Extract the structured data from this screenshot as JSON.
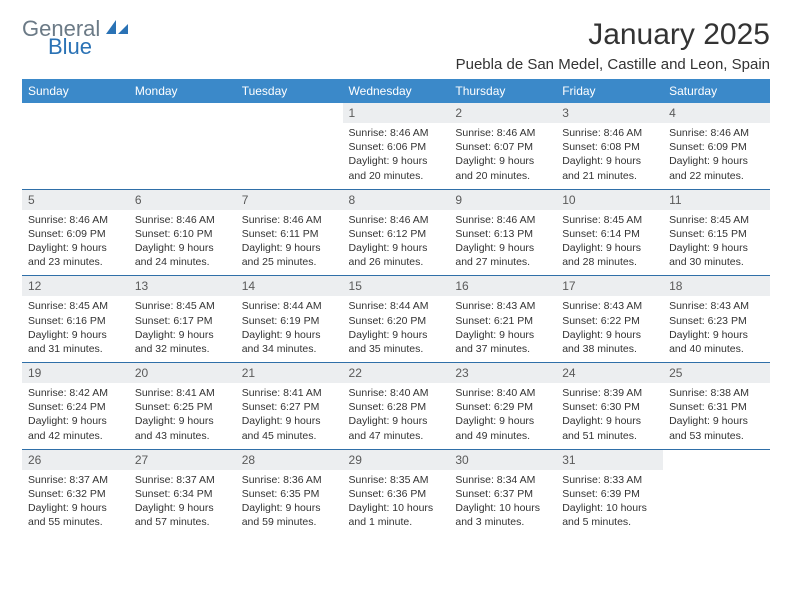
{
  "logo": {
    "word1": "General",
    "word2": "Blue",
    "color1": "#6b7a86",
    "color2": "#2a72b5"
  },
  "header": {
    "title": "January 2025",
    "location": "Puebla de San Medel, Castille and Leon, Spain"
  },
  "colors": {
    "header_bg": "#3b89c9",
    "header_text": "#ffffff",
    "daynum_bg": "#eceef0",
    "rule": "#2f6fa8",
    "body_text": "#333333"
  },
  "dayNames": [
    "Sunday",
    "Monday",
    "Tuesday",
    "Wednesday",
    "Thursday",
    "Friday",
    "Saturday"
  ],
  "weeks": [
    [
      null,
      null,
      null,
      {
        "n": "1",
        "sr": "8:46 AM",
        "ss": "6:06 PM",
        "dl": "9 hours and 20 minutes."
      },
      {
        "n": "2",
        "sr": "8:46 AM",
        "ss": "6:07 PM",
        "dl": "9 hours and 20 minutes."
      },
      {
        "n": "3",
        "sr": "8:46 AM",
        "ss": "6:08 PM",
        "dl": "9 hours and 21 minutes."
      },
      {
        "n": "4",
        "sr": "8:46 AM",
        "ss": "6:09 PM",
        "dl": "9 hours and 22 minutes."
      }
    ],
    [
      {
        "n": "5",
        "sr": "8:46 AM",
        "ss": "6:09 PM",
        "dl": "9 hours and 23 minutes."
      },
      {
        "n": "6",
        "sr": "8:46 AM",
        "ss": "6:10 PM",
        "dl": "9 hours and 24 minutes."
      },
      {
        "n": "7",
        "sr": "8:46 AM",
        "ss": "6:11 PM",
        "dl": "9 hours and 25 minutes."
      },
      {
        "n": "8",
        "sr": "8:46 AM",
        "ss": "6:12 PM",
        "dl": "9 hours and 26 minutes."
      },
      {
        "n": "9",
        "sr": "8:46 AM",
        "ss": "6:13 PM",
        "dl": "9 hours and 27 minutes."
      },
      {
        "n": "10",
        "sr": "8:45 AM",
        "ss": "6:14 PM",
        "dl": "9 hours and 28 minutes."
      },
      {
        "n": "11",
        "sr": "8:45 AM",
        "ss": "6:15 PM",
        "dl": "9 hours and 30 minutes."
      }
    ],
    [
      {
        "n": "12",
        "sr": "8:45 AM",
        "ss": "6:16 PM",
        "dl": "9 hours and 31 minutes."
      },
      {
        "n": "13",
        "sr": "8:45 AM",
        "ss": "6:17 PM",
        "dl": "9 hours and 32 minutes."
      },
      {
        "n": "14",
        "sr": "8:44 AM",
        "ss": "6:19 PM",
        "dl": "9 hours and 34 minutes."
      },
      {
        "n": "15",
        "sr": "8:44 AM",
        "ss": "6:20 PM",
        "dl": "9 hours and 35 minutes."
      },
      {
        "n": "16",
        "sr": "8:43 AM",
        "ss": "6:21 PM",
        "dl": "9 hours and 37 minutes."
      },
      {
        "n": "17",
        "sr": "8:43 AM",
        "ss": "6:22 PM",
        "dl": "9 hours and 38 minutes."
      },
      {
        "n": "18",
        "sr": "8:43 AM",
        "ss": "6:23 PM",
        "dl": "9 hours and 40 minutes."
      }
    ],
    [
      {
        "n": "19",
        "sr": "8:42 AM",
        "ss": "6:24 PM",
        "dl": "9 hours and 42 minutes."
      },
      {
        "n": "20",
        "sr": "8:41 AM",
        "ss": "6:25 PM",
        "dl": "9 hours and 43 minutes."
      },
      {
        "n": "21",
        "sr": "8:41 AM",
        "ss": "6:27 PM",
        "dl": "9 hours and 45 minutes."
      },
      {
        "n": "22",
        "sr": "8:40 AM",
        "ss": "6:28 PM",
        "dl": "9 hours and 47 minutes."
      },
      {
        "n": "23",
        "sr": "8:40 AM",
        "ss": "6:29 PM",
        "dl": "9 hours and 49 minutes."
      },
      {
        "n": "24",
        "sr": "8:39 AM",
        "ss": "6:30 PM",
        "dl": "9 hours and 51 minutes."
      },
      {
        "n": "25",
        "sr": "8:38 AM",
        "ss": "6:31 PM",
        "dl": "9 hours and 53 minutes."
      }
    ],
    [
      {
        "n": "26",
        "sr": "8:37 AM",
        "ss": "6:32 PM",
        "dl": "9 hours and 55 minutes."
      },
      {
        "n": "27",
        "sr": "8:37 AM",
        "ss": "6:34 PM",
        "dl": "9 hours and 57 minutes."
      },
      {
        "n": "28",
        "sr": "8:36 AM",
        "ss": "6:35 PM",
        "dl": "9 hours and 59 minutes."
      },
      {
        "n": "29",
        "sr": "8:35 AM",
        "ss": "6:36 PM",
        "dl": "10 hours and 1 minute."
      },
      {
        "n": "30",
        "sr": "8:34 AM",
        "ss": "6:37 PM",
        "dl": "10 hours and 3 minutes."
      },
      {
        "n": "31",
        "sr": "8:33 AM",
        "ss": "6:39 PM",
        "dl": "10 hours and 5 minutes."
      },
      null
    ]
  ],
  "labels": {
    "sunrise": "Sunrise:",
    "sunset": "Sunset:",
    "daylight": "Daylight:"
  }
}
